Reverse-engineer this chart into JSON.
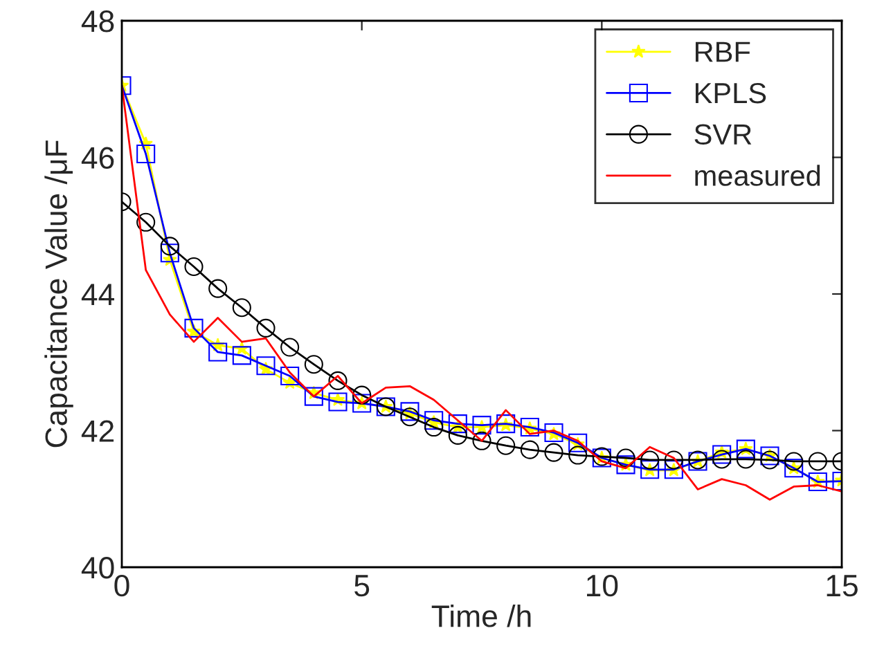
{
  "chart_data": {
    "type": "line",
    "xlabel": "Time /h",
    "ylabel": "Capacitance Value /μF",
    "x": [
      0,
      0.5,
      1,
      1.5,
      2,
      2.5,
      3,
      3.5,
      4,
      4.5,
      5,
      5.5,
      6,
      6.5,
      7,
      7.5,
      8,
      8.5,
      9,
      9.5,
      10,
      10.5,
      11,
      11.5,
      12,
      12.5,
      13,
      13.5,
      14,
      14.5,
      15
    ],
    "series": [
      {
        "name": "RBF",
        "color": "#ffff00",
        "marker": "star",
        "values": [
          47.05,
          46.2,
          44.5,
          43.45,
          43.25,
          43.2,
          42.9,
          42.7,
          42.55,
          42.45,
          42.4,
          42.35,
          42.25,
          42.12,
          42.05,
          42.05,
          42.08,
          42.03,
          41.95,
          41.8,
          41.6,
          41.5,
          41.42,
          41.42,
          41.55,
          41.68,
          41.73,
          41.63,
          41.45,
          41.25,
          41.27
        ]
      },
      {
        "name": "KPLS",
        "color": "#0000ff",
        "marker": "square",
        "values": [
          47.05,
          46.05,
          44.6,
          43.5,
          43.15,
          43.1,
          42.95,
          42.8,
          42.5,
          42.42,
          42.4,
          42.35,
          42.28,
          42.15,
          42.1,
          42.08,
          42.1,
          42.05,
          41.97,
          41.82,
          41.6,
          41.5,
          41.43,
          41.43,
          41.55,
          41.65,
          41.73,
          41.63,
          41.45,
          41.25,
          41.26
        ]
      },
      {
        "name": "SVR",
        "color": "#000000",
        "marker": "circle",
        "values": [
          45.35,
          45.05,
          44.7,
          44.4,
          44.08,
          43.8,
          43.5,
          43.22,
          42.97,
          42.73,
          42.52,
          42.35,
          42.2,
          42.05,
          41.93,
          41.85,
          41.78,
          41.72,
          41.68,
          41.64,
          41.62,
          41.6,
          41.57,
          41.57,
          41.57,
          41.58,
          41.58,
          41.57,
          41.55,
          41.55,
          41.55
        ]
      },
      {
        "name": "measured",
        "color": "#ff0000",
        "marker": "none",
        "values": [
          47.05,
          44.35,
          43.7,
          43.3,
          43.65,
          43.3,
          43.35,
          42.85,
          42.5,
          42.8,
          42.4,
          42.63,
          42.65,
          42.45,
          42.15,
          41.85,
          42.3,
          41.95,
          42.0,
          41.85,
          41.55,
          41.45,
          41.76,
          41.6,
          41.14,
          41.29,
          41.2,
          40.99,
          41.18,
          41.2,
          41.11
        ]
      }
    ],
    "xlim": [
      0,
      15
    ],
    "xticks": [
      0,
      5,
      10,
      15
    ],
    "ylim": [
      40,
      48
    ],
    "yticks": [
      40,
      42,
      44,
      46,
      48
    ],
    "grid": false,
    "legend": "top right"
  }
}
